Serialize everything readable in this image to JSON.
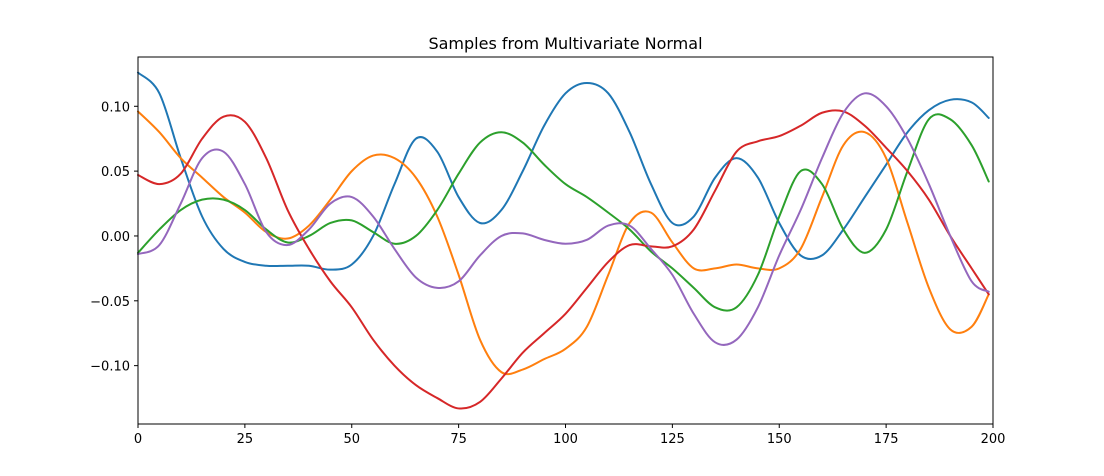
{
  "chart_data": {
    "type": "line",
    "title": "Samples from Multivariate Normal",
    "xlabel": "",
    "ylabel": "",
    "xlim": [
      0,
      200
    ],
    "ylim": [
      -0.145,
      0.138
    ],
    "xticks": [
      0,
      25,
      50,
      75,
      100,
      125,
      150,
      175,
      200
    ],
    "xtick_labels": [
      "0",
      "25",
      "50",
      "75",
      "100",
      "125",
      "150",
      "175",
      "200"
    ],
    "yticks": [
      -0.1,
      -0.05,
      0.0,
      0.05,
      0.1
    ],
    "ytick_labels": [
      "−0.10",
      "−0.05",
      "0.00",
      "0.05",
      "0.10"
    ],
    "grid": false,
    "legend": "none",
    "series": [
      {
        "color": "#1f77b4",
        "points": [
          [
            0,
            0.126
          ],
          [
            5,
            0.11
          ],
          [
            10,
            0.06
          ],
          [
            15,
            0.015
          ],
          [
            20,
            -0.01
          ],
          [
            25,
            -0.02
          ],
          [
            30,
            -0.023
          ],
          [
            35,
            -0.023
          ],
          [
            40,
            -0.023
          ],
          [
            45,
            -0.026
          ],
          [
            50,
            -0.022
          ],
          [
            55,
            0.0
          ],
          [
            60,
            0.04
          ],
          [
            65,
            0.075
          ],
          [
            70,
            0.065
          ],
          [
            75,
            0.03
          ],
          [
            80,
            0.01
          ],
          [
            85,
            0.02
          ],
          [
            90,
            0.05
          ],
          [
            95,
            0.085
          ],
          [
            100,
            0.11
          ],
          [
            105,
            0.118
          ],
          [
            110,
            0.11
          ],
          [
            115,
            0.08
          ],
          [
            120,
            0.04
          ],
          [
            125,
            0.01
          ],
          [
            130,
            0.015
          ],
          [
            135,
            0.045
          ],
          [
            140,
            0.06
          ],
          [
            145,
            0.045
          ],
          [
            150,
            0.01
          ],
          [
            155,
            -0.015
          ],
          [
            160,
            -0.015
          ],
          [
            165,
            0.005
          ],
          [
            170,
            0.03
          ],
          [
            175,
            0.055
          ],
          [
            180,
            0.08
          ],
          [
            185,
            0.097
          ],
          [
            190,
            0.105
          ],
          [
            195,
            0.103
          ],
          [
            199,
            0.091
          ]
        ]
      },
      {
        "color": "#ff7f0e",
        "points": [
          [
            0,
            0.096
          ],
          [
            5,
            0.08
          ],
          [
            10,
            0.06
          ],
          [
            15,
            0.045
          ],
          [
            20,
            0.03
          ],
          [
            25,
            0.018
          ],
          [
            30,
            0.003
          ],
          [
            35,
            -0.002
          ],
          [
            40,
            0.008
          ],
          [
            45,
            0.028
          ],
          [
            50,
            0.05
          ],
          [
            55,
            0.062
          ],
          [
            60,
            0.06
          ],
          [
            65,
            0.045
          ],
          [
            70,
            0.015
          ],
          [
            75,
            -0.03
          ],
          [
            80,
            -0.08
          ],
          [
            85,
            -0.105
          ],
          [
            90,
            -0.103
          ],
          [
            95,
            -0.095
          ],
          [
            100,
            -0.087
          ],
          [
            105,
            -0.07
          ],
          [
            110,
            -0.03
          ],
          [
            115,
            0.01
          ],
          [
            120,
            0.018
          ],
          [
            125,
            -0.005
          ],
          [
            130,
            -0.025
          ],
          [
            135,
            -0.025
          ],
          [
            140,
            -0.022
          ],
          [
            145,
            -0.025
          ],
          [
            150,
            -0.025
          ],
          [
            155,
            -0.01
          ],
          [
            160,
            0.03
          ],
          [
            165,
            0.07
          ],
          [
            170,
            0.08
          ],
          [
            175,
            0.06
          ],
          [
            180,
            0.01
          ],
          [
            185,
            -0.04
          ],
          [
            190,
            -0.072
          ],
          [
            195,
            -0.07
          ],
          [
            199,
            -0.045
          ]
        ]
      },
      {
        "color": "#2ca02c",
        "points": [
          [
            0,
            -0.013
          ],
          [
            5,
            0.005
          ],
          [
            10,
            0.02
          ],
          [
            15,
            0.028
          ],
          [
            20,
            0.028
          ],
          [
            25,
            0.02
          ],
          [
            30,
            0.005
          ],
          [
            35,
            -0.005
          ],
          [
            40,
            0.0
          ],
          [
            45,
            0.01
          ],
          [
            50,
            0.012
          ],
          [
            55,
            0.003
          ],
          [
            60,
            -0.006
          ],
          [
            65,
            0.0
          ],
          [
            70,
            0.02
          ],
          [
            75,
            0.048
          ],
          [
            80,
            0.072
          ],
          [
            85,
            0.08
          ],
          [
            90,
            0.072
          ],
          [
            95,
            0.055
          ],
          [
            100,
            0.04
          ],
          [
            105,
            0.03
          ],
          [
            110,
            0.018
          ],
          [
            115,
            0.005
          ],
          [
            120,
            -0.012
          ],
          [
            125,
            -0.025
          ],
          [
            130,
            -0.04
          ],
          [
            135,
            -0.055
          ],
          [
            140,
            -0.055
          ],
          [
            145,
            -0.03
          ],
          [
            150,
            0.015
          ],
          [
            155,
            0.05
          ],
          [
            160,
            0.04
          ],
          [
            165,
            0.005
          ],
          [
            170,
            -0.013
          ],
          [
            175,
            0.005
          ],
          [
            180,
            0.05
          ],
          [
            185,
            0.09
          ],
          [
            190,
            0.09
          ],
          [
            195,
            0.07
          ],
          [
            199,
            0.042
          ]
        ]
      },
      {
        "color": "#d62728",
        "points": [
          [
            0,
            0.047
          ],
          [
            5,
            0.04
          ],
          [
            10,
            0.048
          ],
          [
            15,
            0.075
          ],
          [
            20,
            0.092
          ],
          [
            25,
            0.088
          ],
          [
            30,
            0.06
          ],
          [
            35,
            0.02
          ],
          [
            40,
            -0.01
          ],
          [
            45,
            -0.035
          ],
          [
            50,
            -0.055
          ],
          [
            55,
            -0.08
          ],
          [
            60,
            -0.1
          ],
          [
            65,
            -0.115
          ],
          [
            70,
            -0.125
          ],
          [
            75,
            -0.133
          ],
          [
            80,
            -0.128
          ],
          [
            85,
            -0.11
          ],
          [
            90,
            -0.09
          ],
          [
            95,
            -0.075
          ],
          [
            100,
            -0.06
          ],
          [
            105,
            -0.04
          ],
          [
            110,
            -0.02
          ],
          [
            115,
            -0.007
          ],
          [
            120,
            -0.008
          ],
          [
            125,
            -0.008
          ],
          [
            130,
            0.005
          ],
          [
            135,
            0.035
          ],
          [
            140,
            0.065
          ],
          [
            145,
            0.073
          ],
          [
            150,
            0.077
          ],
          [
            155,
            0.085
          ],
          [
            160,
            0.095
          ],
          [
            165,
            0.096
          ],
          [
            170,
            0.085
          ],
          [
            175,
            0.068
          ],
          [
            180,
            0.05
          ],
          [
            185,
            0.028
          ],
          [
            190,
            0.0
          ],
          [
            195,
            -0.025
          ],
          [
            199,
            -0.045
          ]
        ]
      },
      {
        "color": "#9467bd",
        "points": [
          [
            0,
            -0.014
          ],
          [
            5,
            -0.007
          ],
          [
            10,
            0.025
          ],
          [
            15,
            0.06
          ],
          [
            20,
            0.065
          ],
          [
            25,
            0.04
          ],
          [
            30,
            0.003
          ],
          [
            35,
            -0.007
          ],
          [
            40,
            0.005
          ],
          [
            45,
            0.025
          ],
          [
            50,
            0.03
          ],
          [
            55,
            0.015
          ],
          [
            60,
            -0.01
          ],
          [
            65,
            -0.032
          ],
          [
            70,
            -0.04
          ],
          [
            75,
            -0.035
          ],
          [
            80,
            -0.015
          ],
          [
            85,
            0.0
          ],
          [
            90,
            0.002
          ],
          [
            95,
            -0.003
          ],
          [
            100,
            -0.006
          ],
          [
            105,
            -0.003
          ],
          [
            110,
            0.008
          ],
          [
            115,
            0.008
          ],
          [
            120,
            -0.01
          ],
          [
            125,
            -0.03
          ],
          [
            130,
            -0.06
          ],
          [
            135,
            -0.082
          ],
          [
            140,
            -0.08
          ],
          [
            145,
            -0.055
          ],
          [
            150,
            -0.015
          ],
          [
            155,
            0.02
          ],
          [
            160,
            0.06
          ],
          [
            165,
            0.095
          ],
          [
            170,
            0.11
          ],
          [
            175,
            0.1
          ],
          [
            180,
            0.075
          ],
          [
            185,
            0.04
          ],
          [
            190,
            0.0
          ],
          [
            195,
            -0.035
          ],
          [
            199,
            -0.043
          ]
        ]
      }
    ]
  }
}
